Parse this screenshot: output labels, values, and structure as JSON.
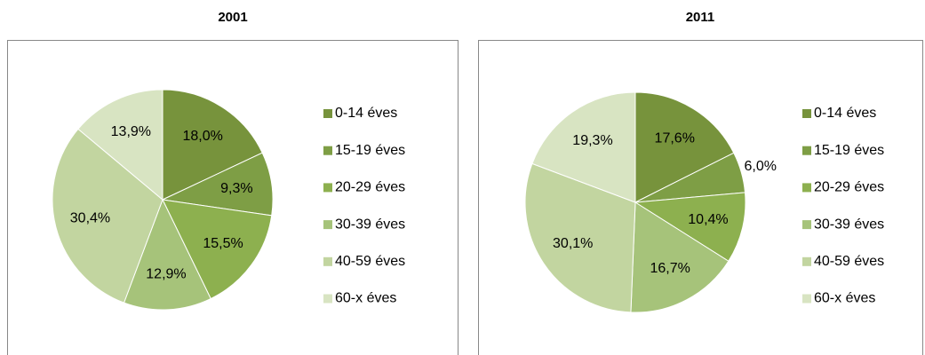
{
  "chart_data": [
    {
      "type": "pie",
      "title": "2001",
      "categories": [
        "0-14 éves",
        "15-19 éves",
        "20-29 éves",
        "30-39 éves",
        "40-59 éves",
        "60-x éves"
      ],
      "values": [
        18.0,
        9.3,
        15.5,
        12.9,
        30.4,
        13.9
      ],
      "value_labels": [
        "18,0%",
        "9,3%",
        "15,5%",
        "12,9%",
        "30,4%",
        "13,9%"
      ],
      "colors": [
        "#77933c",
        "#7e9e45",
        "#8db04f",
        "#a6c37a",
        "#c2d5a0",
        "#d8e4c2"
      ]
    },
    {
      "type": "pie",
      "title": "2011",
      "categories": [
        "0-14 éves",
        "15-19 éves",
        "20-29 éves",
        "30-39 éves",
        "40-59 éves",
        "60-x éves"
      ],
      "values": [
        17.6,
        6.0,
        10.4,
        16.7,
        30.1,
        19.3
      ],
      "value_labels": [
        "17,6%",
        "6,0%",
        "10,4%",
        "16,7%",
        "30,1%",
        "19,3%"
      ],
      "colors": [
        "#77933c",
        "#7e9e45",
        "#8db04f",
        "#a6c37a",
        "#c2d5a0",
        "#d8e4c2"
      ]
    }
  ]
}
